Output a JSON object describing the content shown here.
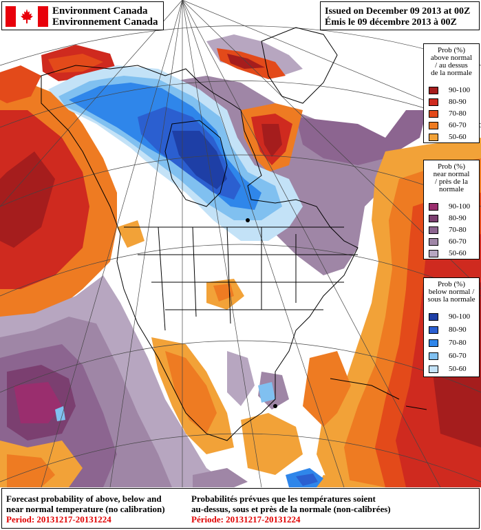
{
  "header": {
    "org_en": "Environment Canada",
    "org_fr": "Environnement Canada",
    "issued_en": "Issued on December 09 2013 at 00Z",
    "issued_fr": "Émis le 09 décembre 2013 à 00Z"
  },
  "legends": {
    "above": {
      "title_lines": [
        "Prob (%)",
        "above normal",
        "/ au dessus",
        "de la normale"
      ],
      "entries": [
        {
          "label": "90-100",
          "color": "#a51d1d"
        },
        {
          "label": "80-90",
          "color": "#cf2a1f"
        },
        {
          "label": "70-80",
          "color": "#e34a1a"
        },
        {
          "label": "60-70",
          "color": "#ee7b22"
        },
        {
          "label": "50-60",
          "color": "#f2a238"
        }
      ]
    },
    "near": {
      "title_lines": [
        "Prob (%)",
        "near normal",
        "/ près de la",
        "normale"
      ],
      "entries": [
        {
          "label": "90-100",
          "color": "#9a2e6e"
        },
        {
          "label": "80-90",
          "color": "#7b3f70"
        },
        {
          "label": "70-80",
          "color": "#8c6590"
        },
        {
          "label": "60-70",
          "color": "#9f86a6"
        },
        {
          "label": "50-60",
          "color": "#b7a6c0"
        }
      ]
    },
    "below": {
      "title_lines": [
        "Prob (%)",
        "below normal /",
        "sous la normale"
      ],
      "entries": [
        {
          "label": "90-100",
          "color": "#1e3fa6"
        },
        {
          "label": "80-90",
          "color": "#2b5fd0"
        },
        {
          "label": "70-80",
          "color": "#2f86ea"
        },
        {
          "label": "60-70",
          "color": "#80c0f0"
        },
        {
          "label": "50-60",
          "color": "#c3e2f7"
        }
      ]
    }
  },
  "footer": {
    "en_line1": "Forecast probability of above, below and",
    "en_line2": "near normal temperature (no calibration)",
    "en_period": "Period: 20131217-20131224",
    "fr_line1": "Probabilités prévues que les températures soient",
    "fr_line2": "au-dessus, sous et près de la normale (non-calibrées)",
    "fr_period": "Période: 20131217-20131224"
  }
}
